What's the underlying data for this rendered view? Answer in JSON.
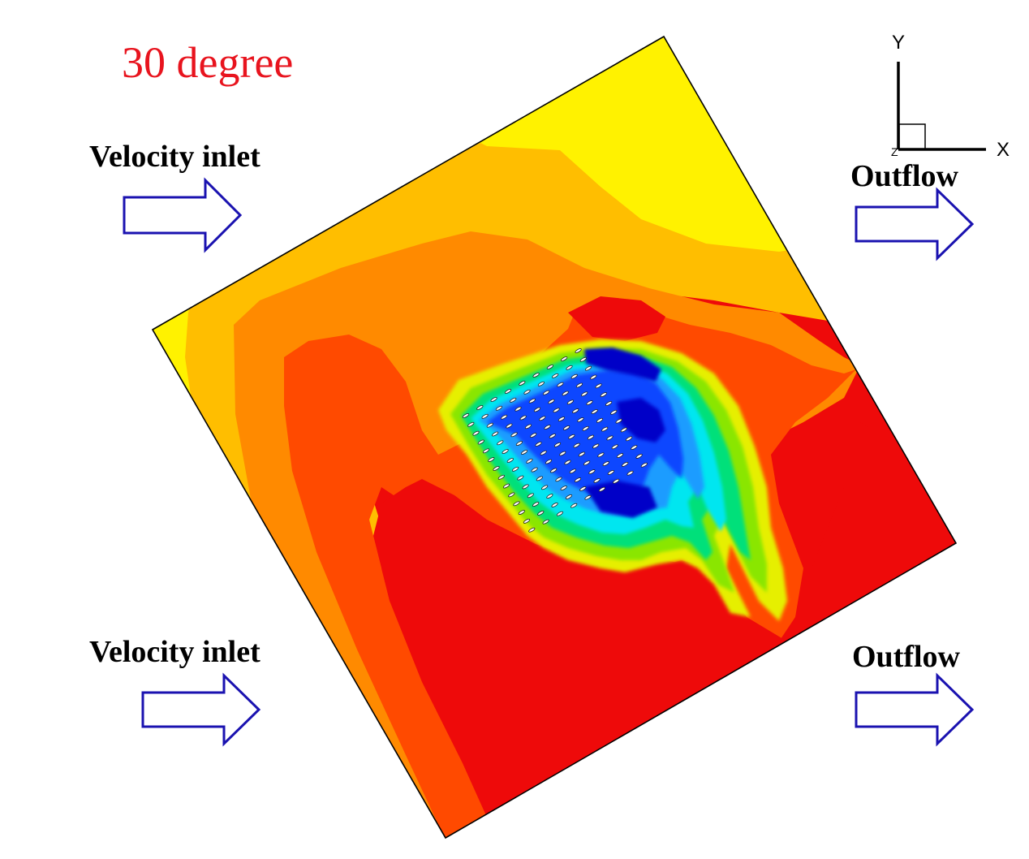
{
  "figure": {
    "title": "30 degree",
    "title_color": "#e8141e"
  },
  "boundary_labels": {
    "inlet_top": "Velocity inlet",
    "inlet_bottom": "Velocity inlet",
    "outflow_top": "Outflow",
    "outflow_bottom": "Outflow"
  },
  "axis_triad": {
    "x_label": "X",
    "y_label": "Y",
    "z_label": "Z"
  },
  "colors": {
    "arrow_stroke": "#1a12b0",
    "contour_levels": [
      "#0000c8",
      "#0a46ff",
      "#1a9cff",
      "#00e6f0",
      "#00e07a",
      "#8ae600",
      "#e6ef00",
      "#fff200",
      "#ffbe00",
      "#ff8a00",
      "#ff4a00",
      "#ee0a0a"
    ]
  },
  "domain": {
    "rotation_deg": 30
  }
}
